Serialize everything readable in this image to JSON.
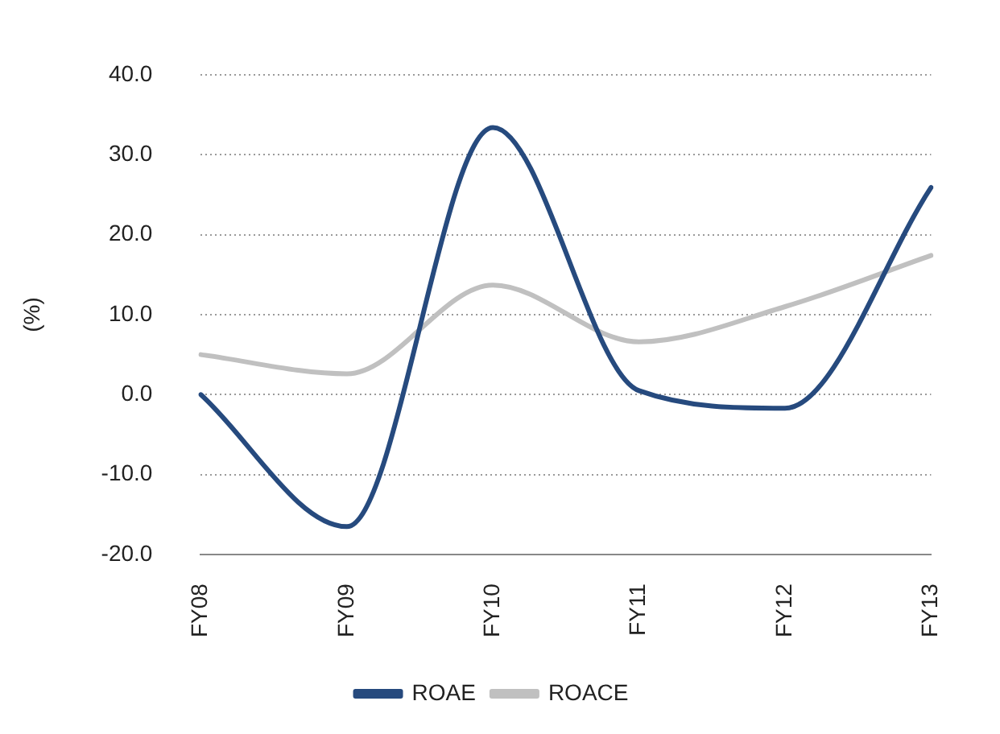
{
  "chart_data": {
    "type": "line",
    "ylabel": "(%)",
    "categories": [
      "FY08",
      "FY09",
      "FY10",
      "FY11",
      "FY12",
      "FY13"
    ],
    "series": [
      {
        "name": "ROAE",
        "color": "#264a7e",
        "values": [
          0.0,
          -16.5,
          33.4,
          0.5,
          -1.7,
          25.9
        ]
      },
      {
        "name": "ROACE",
        "color": "#c0c0c0",
        "values": [
          5.0,
          2.6,
          13.7,
          6.6,
          11.0,
          17.4
        ]
      }
    ],
    "ylim": [
      -20,
      40
    ],
    "yticks": [
      {
        "value": -20,
        "label": "-20.0"
      },
      {
        "value": -10,
        "label": "-10.0"
      },
      {
        "value": 0,
        "label": "0.0"
      },
      {
        "value": 10,
        "label": "10.0"
      },
      {
        "value": 20,
        "label": "20.0"
      },
      {
        "value": 30,
        "label": "30.0"
      },
      {
        "value": 40,
        "label": "40.0"
      }
    ],
    "grid": "y",
    "legend": "bottom",
    "marker": "none",
    "line_style": "solid"
  }
}
